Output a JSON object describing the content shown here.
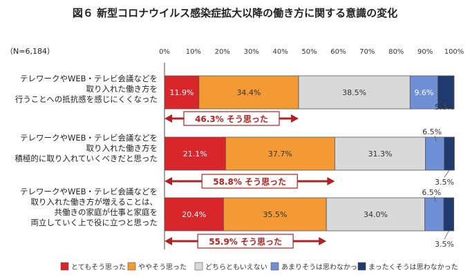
{
  "chart_data": {
    "type": "bar",
    "title": "図６ 新型コロナウイルス感染症拡大以降の働き方に関する意識の変化",
    "sample_note": "（N=6,184）",
    "orientation": "horizontal-stacked-100",
    "xlim": [
      0,
      100
    ],
    "x_ticks": [
      "0%",
      "10%",
      "20%",
      "30%",
      "40%",
      "50%",
      "60%",
      "70%",
      "80%",
      "90%",
      "100%"
    ],
    "legend_position": "bottom",
    "categories": [
      {
        "lines": [
          "テレワークやWEB・テレビ会議などを",
          "取り入れた働き方を",
          "行うことへの抵抗感を感じにくくなった"
        ]
      },
      {
        "lines": [
          "テレワークやWEB・テレビ会議などを",
          "取り入れた働き方を",
          "積極的に取り入れていくべきだと思った"
        ]
      },
      {
        "lines": [
          "テレワークやWEB・テレビ会議などを",
          "取り入れた働き方が増えることは、",
          "共働きの家庭が仕事と家庭を",
          "両立していく上で役に立つと思った"
        ]
      }
    ],
    "series": [
      {
        "name": "とてもそう思った",
        "color": "#d9262b",
        "values": [
          11.9,
          21.1,
          20.4
        ],
        "labels": [
          "11.9%",
          "21.1%",
          "20.4%"
        ]
      },
      {
        "name": "ややそう思った",
        "color": "#f39a34",
        "values": [
          34.4,
          37.7,
          35.5
        ],
        "labels": [
          "34.4%",
          "37.7%",
          "35.5%"
        ]
      },
      {
        "name": "どちらともいえない",
        "color": "#d9d9d9",
        "values": [
          38.5,
          31.3,
          34.0
        ],
        "labels": [
          "38.5%",
          "31.3%",
          "34.0%"
        ]
      },
      {
        "name": "あまりそうは思わなかった",
        "color": "#6f8fd6",
        "values": [
          9.6,
          6.5,
          6.5
        ],
        "labels": [
          "9.6%",
          "6.5%",
          "6.5%"
        ]
      },
      {
        "name": "まったくそうは思わなかった",
        "color": "#1f3a6e",
        "values": [
          5.6,
          3.5,
          3.5
        ],
        "labels": [
          "5.6%",
          "3.5%",
          "3.5%"
        ]
      }
    ],
    "sum_annotations": [
      "46.3% そう思った",
      "58.8% そう思った",
      "55.9% そう思った"
    ],
    "sum_values": [
      46.3,
      58.8,
      55.9
    ],
    "arrow_color": "#b3201f"
  }
}
